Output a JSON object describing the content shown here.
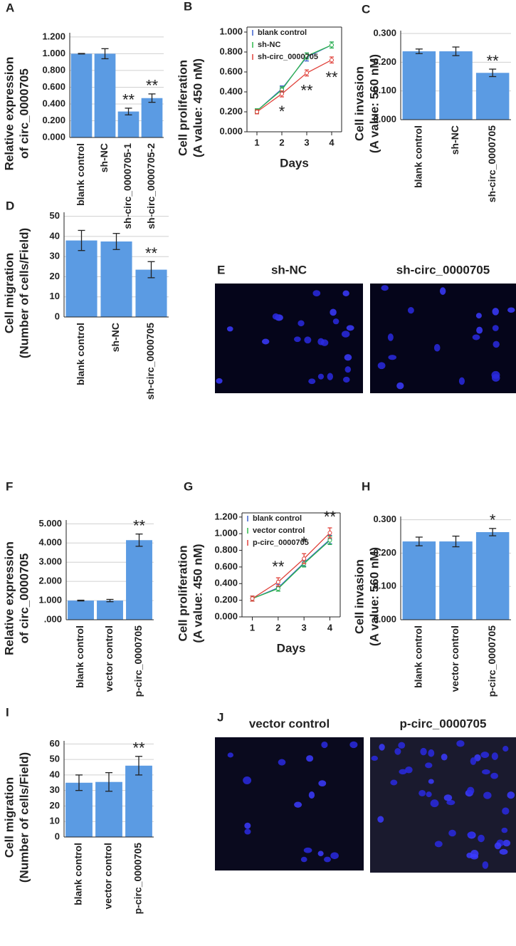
{
  "chart_data": [
    {
      "type": "bar",
      "panel": "A",
      "ylabel": [
        "Relative expression",
        "of circ_0000705"
      ],
      "categories": [
        "blank control",
        "sh-NC",
        "sh-circ_0000705-1",
        "sh-circ_0000705-2"
      ],
      "values": [
        1.0,
        1.0,
        0.31,
        0.47
      ],
      "errors": [
        0.003,
        0.06,
        0.04,
        0.05
      ],
      "significance": [
        null,
        null,
        "**",
        "**"
      ],
      "color": "#5b9be3",
      "grid": true,
      "ylim": [
        0,
        1.25
      ],
      "yticks": [
        {
          "value": 0,
          "label": "0.000"
        },
        {
          "value": 0.2,
          "label": "0.200"
        },
        {
          "value": 0.4,
          "label": "0.400"
        },
        {
          "value": 0.6,
          "label": "0.600"
        },
        {
          "value": 0.8,
          "label": "0.800"
        },
        {
          "value": 1.0,
          "label": "1.000"
        },
        {
          "value": 1.2,
          "label": "1.200"
        }
      ]
    },
    {
      "type": "line",
      "panel": "B",
      "ylabel": [
        "Cell proliferation",
        "(A value: 450 nM)"
      ],
      "xlabel": "Days",
      "x": [
        1,
        2,
        3,
        4
      ],
      "xlim": [
        0.6,
        4.4
      ],
      "xticks": [
        1,
        2,
        3,
        4
      ],
      "grid": false,
      "ylim": [
        0,
        1.05
      ],
      "yticks": [
        {
          "value": 0,
          "label": "0.000"
        },
        {
          "value": 0.2,
          "label": "0.200"
        },
        {
          "value": 0.4,
          "label": "0.400"
        },
        {
          "value": 0.6,
          "label": "0.600"
        },
        {
          "value": 0.8,
          "label": "0.800"
        },
        {
          "value": 1.0,
          "label": "1.000"
        }
      ],
      "series": [
        {
          "name": "blank control",
          "color": "#3a5fcd",
          "values": [
            0.21,
            0.43,
            0.75,
            0.87
          ],
          "errors": [
            0.02,
            0.03,
            0.04,
            0.03
          ]
        },
        {
          "name": "sh-NC",
          "color": "#2eb84a",
          "values": [
            0.21,
            0.42,
            0.76,
            0.87
          ],
          "errors": [
            0.02,
            0.03,
            0.03,
            0.03
          ]
        },
        {
          "name": "sh-circ_0000705",
          "color": "#e0413a",
          "values": [
            0.2,
            0.38,
            0.59,
            0.72
          ],
          "errors": [
            0.02,
            0.03,
            0.03,
            0.03
          ],
          "significance": [
            null,
            "*",
            "**",
            "**"
          ]
        }
      ]
    },
    {
      "type": "bar",
      "panel": "C",
      "ylabel": [
        "Cell invasion",
        "(A value: 560 nM)"
      ],
      "categories": [
        "blank control",
        "sh-NC",
        "sh-circ_0000705"
      ],
      "values": [
        0.238,
        0.238,
        0.163
      ],
      "errors": [
        0.008,
        0.015,
        0.013
      ],
      "significance": [
        null,
        null,
        "**"
      ],
      "color": "#5b9be3",
      "grid": true,
      "ylim": [
        0,
        0.31
      ],
      "yticks": [
        {
          "value": 0,
          "label": "0.000"
        },
        {
          "value": 0.1,
          "label": "0.100"
        },
        {
          "value": 0.2,
          "label": "0.200"
        },
        {
          "value": 0.3,
          "label": "0.300"
        }
      ]
    },
    {
      "type": "bar",
      "panel": "D",
      "ylabel": [
        "Cell migration",
        "(Number of cells/Field)"
      ],
      "categories": [
        "blank control",
        "sh-NC",
        "sh-circ_0000705"
      ],
      "values": [
        38,
        37.5,
        23.5
      ],
      "errors": [
        5,
        4,
        4
      ],
      "significance": [
        null,
        null,
        "**"
      ],
      "color": "#5b9be3",
      "grid": true,
      "ylim": [
        0,
        52
      ],
      "yticks": [
        0,
        10,
        20,
        30,
        40,
        50
      ]
    },
    {
      "type": "bar",
      "panel": "F",
      "ylabel": [
        "Relative expression",
        "of circ_0000705"
      ],
      "categories": [
        "blank control",
        "vector control",
        "p-circ_0000705"
      ],
      "values": [
        1.0,
        1.0,
        4.15
      ],
      "errors": [
        0.02,
        0.06,
        0.32
      ],
      "significance": [
        null,
        null,
        "**"
      ],
      "color": "#5b9be3",
      "grid": true,
      "ylim": [
        0,
        5.2
      ],
      "yticks": [
        {
          "value": 0,
          "label": ".000"
        },
        {
          "value": 1,
          "label": "1.000"
        },
        {
          "value": 2,
          "label": "2.000"
        },
        {
          "value": 3,
          "label": "3.000"
        },
        {
          "value": 4,
          "label": "4.000"
        },
        {
          "value": 5,
          "label": "5.000"
        }
      ]
    },
    {
      "type": "line",
      "panel": "G",
      "ylabel": [
        "Cell proliferation",
        "(A value: 450 nM)"
      ],
      "xlabel": "Days",
      "x": [
        1,
        2,
        3,
        4
      ],
      "xlim": [
        0.6,
        4.4
      ],
      "xticks": [
        1,
        2,
        3,
        4
      ],
      "grid": false,
      "ylim": [
        0,
        1.25
      ],
      "yticks": [
        {
          "value": 0,
          "label": "0.000"
        },
        {
          "value": 0.2,
          "label": "0.200"
        },
        {
          "value": 0.4,
          "label": "0.400"
        },
        {
          "value": 0.6,
          "label": "0.600"
        },
        {
          "value": 0.8,
          "label": "0.800"
        },
        {
          "value": 1.0,
          "label": "1.000"
        },
        {
          "value": 1.2,
          "label": "1.200"
        }
      ],
      "series": [
        {
          "name": "blank control",
          "color": "#3a5fcd",
          "values": [
            0.22,
            0.35,
            0.65,
            0.93
          ],
          "errors": [
            0.03,
            0.04,
            0.04,
            0.05
          ]
        },
        {
          "name": "vector control",
          "color": "#2eb84a",
          "values": [
            0.22,
            0.34,
            0.64,
            0.92
          ],
          "errors": [
            0.03,
            0.03,
            0.04,
            0.05
          ]
        },
        {
          "name": "p-circ_0000705",
          "color": "#e0413a",
          "values": [
            0.22,
            0.42,
            0.7,
            1.01
          ],
          "errors": [
            0.03,
            0.05,
            0.06,
            0.06
          ],
          "significance": [
            null,
            "**",
            "*",
            "**"
          ]
        }
      ]
    },
    {
      "type": "bar",
      "panel": "H",
      "ylabel": [
        "Cell invasion",
        "(A value: 560 nM)"
      ],
      "categories": [
        "blank control",
        "vector control",
        "p-circ_0000705"
      ],
      "values": [
        0.235,
        0.235,
        0.263
      ],
      "errors": [
        0.013,
        0.016,
        0.011
      ],
      "significance": [
        null,
        null,
        "*"
      ],
      "color": "#5b9be3",
      "grid": true,
      "ylim": [
        0,
        0.31
      ],
      "yticks": [
        {
          "value": 0,
          "label": "0.000"
        },
        {
          "value": 0.1,
          "label": "0.100"
        },
        {
          "value": 0.2,
          "label": "0.200"
        },
        {
          "value": 0.3,
          "label": "0.300"
        }
      ]
    },
    {
      "type": "bar",
      "panel": "I",
      "ylabel": [
        "Cell migration",
        "(Number of cells/Field)"
      ],
      "categories": [
        "blank control",
        "vector control",
        "p-circ_0000705"
      ],
      "values": [
        35,
        35.5,
        46
      ],
      "errors": [
        5,
        6,
        6
      ],
      "significance": [
        null,
        null,
        "**"
      ],
      "color": "#5b9be3",
      "grid": true,
      "ylim": [
        0,
        62
      ],
      "yticks": [
        0,
        10,
        20,
        30,
        40,
        50,
        60
      ]
    }
  ],
  "images": [
    {
      "panel": "E",
      "labels": [
        "sh-NC",
        "sh-circ_0000705"
      ]
    },
    {
      "panel": "J",
      "labels": [
        "vector control",
        "p-circ_0000705"
      ]
    }
  ]
}
